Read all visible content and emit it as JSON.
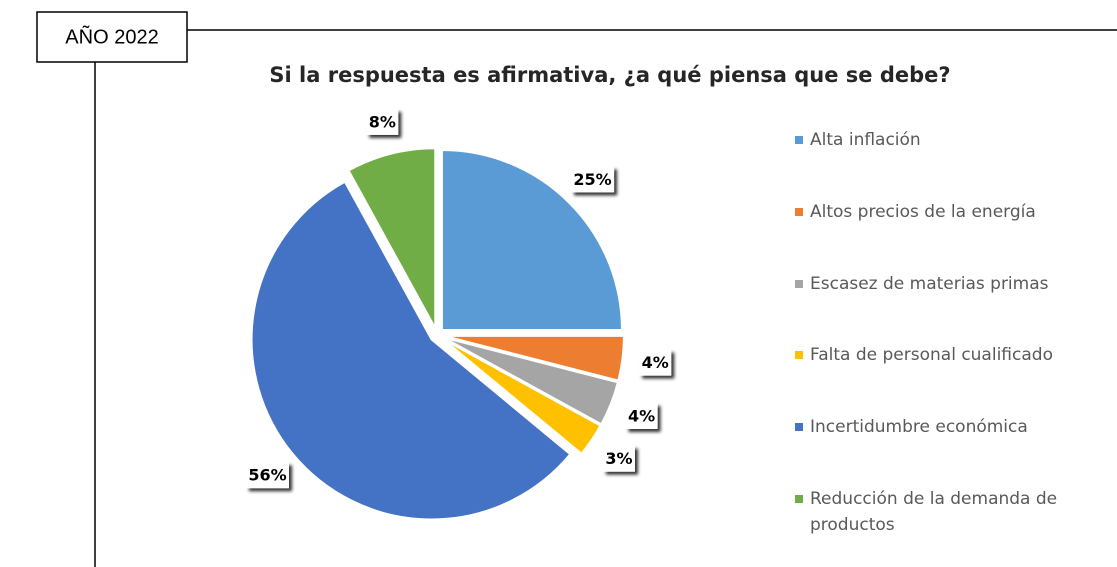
{
  "header": {
    "label": "AÑO 2022"
  },
  "chart_data": {
    "type": "pie",
    "title": "Si la respuesta es afirmativa, ¿a qué piensa que se debe?",
    "categories": [
      "Alta inflación",
      "Altos precios de la energía",
      "Escasez de materias primas",
      "Falta de personal cualificado",
      "Incertidumbre económica",
      "Reducción de la demanda de productos"
    ],
    "values": [
      25,
      4,
      4,
      3,
      56,
      8
    ],
    "value_labels": [
      "25%",
      "4%",
      "4%",
      "3%",
      "56%",
      "8%"
    ],
    "colors": [
      "#5b9bd5",
      "#ed7d31",
      "#a5a5a5",
      "#ffc000",
      "#4472c4",
      "#70ad47"
    ]
  }
}
